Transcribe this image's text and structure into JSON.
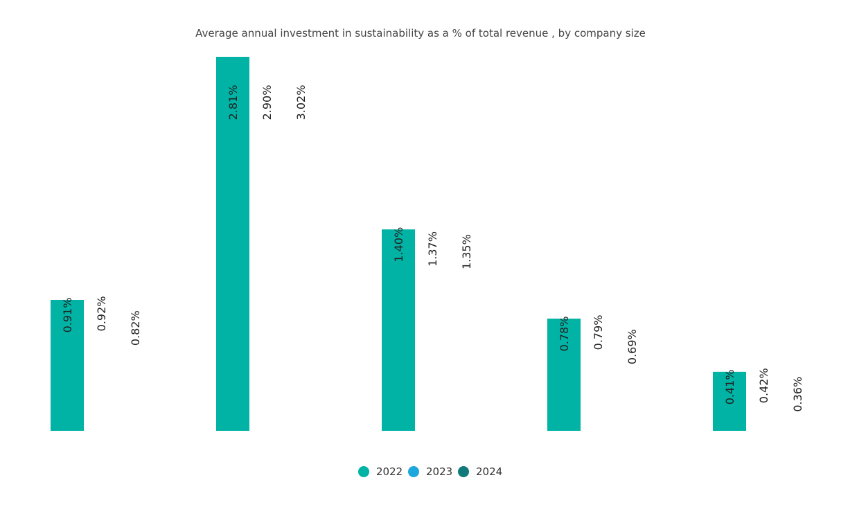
{
  "chart_data": {
    "type": "bar",
    "title": "Average annual investment in sustainability as a % of total revenue , by company size",
    "categories": [
      null,
      null,
      null,
      null,
      null
    ],
    "series": [
      {
        "name": "2022",
        "color": "#00b3a4",
        "values": [
          0.91,
          2.81,
          1.4,
          0.78,
          0.41
        ],
        "value_labels": [
          "0.91%",
          "2.81%",
          "1.40%",
          "0.78%",
          "0.41%"
        ]
      },
      {
        "name": "2023",
        "color": "#1ea7dc",
        "values": [
          0.92,
          2.9,
          1.37,
          0.79,
          0.42
        ],
        "value_labels": [
          "0.92%",
          "2.90%",
          "1.37%",
          "0.79%",
          "0.42%"
        ]
      },
      {
        "name": "2024",
        "color": "#127a7a",
        "values": [
          0.82,
          3.02,
          1.35,
          0.69,
          0.36
        ],
        "value_labels": [
          "0.82%",
          "3.02%",
          "1.35%",
          "0.69%",
          "0.36%"
        ]
      }
    ],
    "ylim": [
      0,
      2.6
    ],
    "legend": "bottom"
  }
}
